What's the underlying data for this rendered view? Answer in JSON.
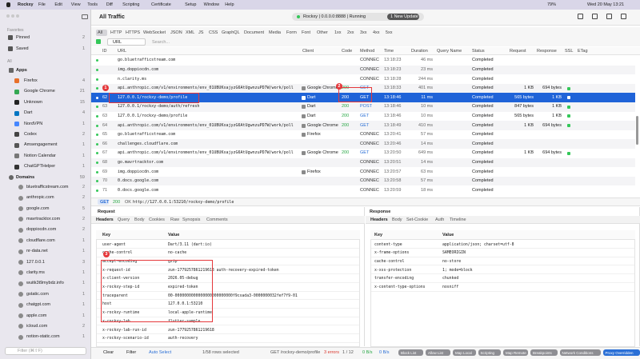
{
  "menu_bar": {
    "app": "Rockxy",
    "items": [
      "File",
      "Edit",
      "View",
      "Tools",
      "Diff",
      "Scripting",
      "Certificate",
      "Setup",
      "Window",
      "Help"
    ],
    "battery": "79%",
    "clock": "Wed 20 May 13:21"
  },
  "sidebar": {
    "favorites_title": "Favorites",
    "favorites": [
      {
        "label": "Pinned",
        "count": 2
      },
      {
        "label": "Saved",
        "count": 1
      }
    ],
    "all_title": "All",
    "apps": {
      "label": "Apps",
      "items": [
        {
          "label": "Firefox",
          "count": 4,
          "icon_color": "#e8702a"
        },
        {
          "label": "Google Chrome",
          "count": 21,
          "icon_color": "#34a853"
        },
        {
          "label": "Unknown",
          "count": 15,
          "icon_color": "#222222"
        },
        {
          "label": "Dart",
          "count": 4,
          "icon_color": "#0175c2"
        },
        {
          "label": "NordVPN",
          "count": 1,
          "icon_color": "#4687ff"
        },
        {
          "label": "Codex",
          "count": 2,
          "icon_color": "#444444"
        },
        {
          "label": "Amsengagement",
          "count": 1,
          "icon_color": "#555555"
        },
        {
          "label": "Notion Calendar",
          "count": 1,
          "icon_color": "#777777"
        },
        {
          "label": "ChatGPTHelper",
          "count": 1,
          "icon_color": "#333333"
        }
      ]
    },
    "domains": {
      "label": "Domains",
      "count": 59,
      "items": [
        {
          "label": "bluetrafficstream.com",
          "count": 2
        },
        {
          "label": "anthropic.com",
          "count": 2
        },
        {
          "label": "google.com",
          "count": 5
        },
        {
          "label": "mavrtracktor.com",
          "count": 2
        },
        {
          "label": "doppiocdn.com",
          "count": 2
        },
        {
          "label": "cloudflare.com",
          "count": 1
        },
        {
          "label": "nr-data.net",
          "count": 1
        },
        {
          "label": "127.0.0.1",
          "count": 3
        },
        {
          "label": "clarity.ms",
          "count": 1
        },
        {
          "label": "wuitk3t9mybdz.info",
          "count": 1
        },
        {
          "label": "gstatic.com",
          "count": 1
        },
        {
          "label": "chatgpt.com",
          "count": 1
        },
        {
          "label": "apple.com",
          "count": 1
        },
        {
          "label": "icloud.com",
          "count": 2
        },
        {
          "label": "notion-static.com",
          "count": 1
        }
      ]
    },
    "filter_placeholder": "Filter (⌘⇧F)"
  },
  "toolbar": {
    "title": "All Traffic",
    "status": "Rockxy | 0.0.0.0:8888 | Running",
    "update": "1 New Update"
  },
  "filter_tabs": [
    "All",
    "HTTP",
    "HTTPS",
    "WebSocket",
    "JSON",
    "XML",
    "JS",
    "CSS",
    "GraphQL",
    "Document",
    "Media",
    "Form",
    "Font",
    "Other",
    "1xx",
    "2xx",
    "3xx",
    "4xx",
    "5xx"
  ],
  "search": {
    "field": "URL",
    "placeholder": "Search..."
  },
  "table": {
    "columns": [
      "ID",
      "URL",
      "Client",
      "Code",
      "Method",
      "Time",
      "Duration",
      "Query Name",
      "Status",
      "Request",
      "Response",
      "SSL",
      "ETag"
    ],
    "rows": [
      {
        "url": "go.bluetrafficstream.com",
        "method": "CONNEC",
        "time": "13:18:23",
        "duration": "46 ms",
        "status": "Completed"
      },
      {
        "url": "img.doppiocdn.com",
        "method": "CONNEC",
        "time": "13:18:23",
        "duration": "23 ms",
        "status": "Completed"
      },
      {
        "url": "n.clarity.ms",
        "method": "CONNEC",
        "time": "13:18:28",
        "duration": "244 ms",
        "status": "Completed"
      },
      {
        "id": 61,
        "url": "api.anthropic.com/v1/environments/env_01UBUKxajyzG6AtUgwnzuPD7W/work/poll",
        "client": "Google Chrome",
        "code": 200,
        "method": "GET",
        "time": "13:18:33",
        "duration": "401 ms",
        "status": "Completed",
        "request": "1 KB",
        "response": "694 bytes"
      },
      {
        "id": 62,
        "url": "127.0.0.1/rockxy-demo/profile",
        "client": "Dart",
        "code": 200,
        "method": "GET",
        "time": "13:18:46",
        "duration": "11 ms",
        "status": "Completed",
        "request": "565 bytes",
        "response": "1 KB",
        "selected": true
      },
      {
        "id": 63,
        "url": "127.0.0.1/rockxy-demo/auth/refresh",
        "client": "Dart",
        "code": 200,
        "method": "POST",
        "time": "13:18:46",
        "duration": "10 ms",
        "status": "Completed",
        "request": "847 bytes",
        "response": "1 KB"
      },
      {
        "id": 63,
        "url": "127.0.0.1/rockxy-demo/profile",
        "client": "Dart",
        "code": 200,
        "method": "GET",
        "time": "13:18:46",
        "duration": "10 ms",
        "status": "Completed",
        "request": "565 bytes",
        "response": "1 KB"
      },
      {
        "id": 64,
        "url": "api.anthropic.com/v1/environments/env_01UBUKxajyzG6AtUgwnzuPD7W/work/poll",
        "client": "Google Chrome",
        "code": 200,
        "method": "GET",
        "time": "13:18:49",
        "duration": "410 ms",
        "status": "Completed",
        "request": "1 KB",
        "response": "694 bytes"
      },
      {
        "id": 65,
        "url": "go.bluetrafficstream.com",
        "client": "Firefox",
        "method": "CONNEC",
        "time": "13:20:41",
        "duration": "57 ms",
        "status": "Completed"
      },
      {
        "id": 66,
        "url": "challenges.cloudflare.com",
        "method": "CONNEC",
        "time": "13:20:46",
        "duration": "14 ms",
        "status": "Completed"
      },
      {
        "id": 67,
        "url": "api.anthropic.com/v1/environments/env_01UBUKxajyzG6AtUgwnzuPD7W/work/poll",
        "client": "Google Chrome",
        "code": 200,
        "method": "GET",
        "time": "13:20:50",
        "duration": "649 ms",
        "status": "Completed",
        "request": "1 KB",
        "response": "694 bytes"
      },
      {
        "id": 68,
        "url": "go.mavrtracktor.com",
        "method": "CONNEC",
        "time": "13:20:51",
        "duration": "14 ms",
        "status": "Completed"
      },
      {
        "id": 69,
        "url": "img.doppiocdn.com",
        "client": "Firefox",
        "method": "CONNEC",
        "time": "13:20:57",
        "duration": "63 ms",
        "status": "Completed"
      },
      {
        "id": 70,
        "url": "0.docs.google.com",
        "method": "CONNEC",
        "time": "13:20:58",
        "duration": "57 ms",
        "status": "Completed"
      },
      {
        "id": 71,
        "url": "0.docs.google.com",
        "method": "CONNEC",
        "time": "13:20:59",
        "duration": "18 ms",
        "status": "Completed"
      }
    ]
  },
  "selected_url": {
    "method": "GET",
    "code": 200,
    "reason": "OK",
    "url": "http://127.0.0.1:53210/rockxy-demo/profile"
  },
  "request": {
    "title": "Request",
    "tabs": [
      "Headers",
      "Query",
      "Body",
      "Cookies",
      "Raw",
      "Synopsis",
      "Comments"
    ],
    "key_header": "Key",
    "value_header": "Value",
    "headers": [
      [
        "user-agent",
        "Dart/3.11 (dart:io)"
      ],
      [
        "cache-control",
        "no-cache"
      ],
      [
        "accept-encoding",
        "gzip"
      ],
      [
        "x-request-id",
        "zun-1779257861219618 auth-recovery-expired-token"
      ],
      [
        "x-client-version",
        "2026.05-debug"
      ],
      [
        "x-rockxy-step-id",
        "expired-token"
      ],
      [
        "traceparent",
        "00-0000000000000000000000000f9cxada3-0000000032fef7f9-01"
      ],
      [
        "host",
        "127.0.0.1:53210"
      ],
      [
        "x-rockxy-runtime",
        "local-apple-runtime"
      ],
      [
        "x-rockxy-lab",
        "flutter-sample"
      ],
      [
        "x-rockxy-lab-run-id",
        "zun-1779257861219618"
      ],
      [
        "x-rockxy-scenario-id",
        "auth-recovery"
      ]
    ]
  },
  "response": {
    "title": "Response",
    "tabs": [
      "Headers",
      "Body",
      "Set-Cookie",
      "Auth",
      "Timeline"
    ],
    "key_header": "Key",
    "value_header": "Value",
    "headers": [
      [
        "content-type",
        "application/json; charset=utf-8"
      ],
      [
        "x-frame-options",
        "SAMEORIGIN"
      ],
      [
        "cache-control",
        "no-store"
      ],
      [
        "x-xss-protection",
        "1; mode=block"
      ],
      [
        "transfer-encoding",
        "chunked"
      ],
      [
        "x-content-type-options",
        "nosniff"
      ]
    ]
  },
  "status_bar": {
    "buttons": [
      "Clear",
      "Filter",
      "Auto Select"
    ],
    "rows_selected": "1/58 rows selected",
    "request": "GET /rockxy-demo/profile",
    "errors": "3 errors",
    "counter": "1 / 12",
    "upload": "0 B/s",
    "download": "0 B/s",
    "tools": [
      "Block List",
      "Allow List",
      "Map Local",
      "Scripting",
      "Map Remote",
      "Breakpoints",
      "Network Conditions",
      "Proxy Overridden"
    ]
  },
  "annotations": [
    "1",
    "2",
    "3"
  ]
}
